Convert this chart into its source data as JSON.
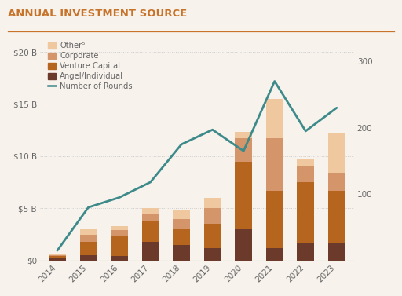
{
  "years": [
    2014,
    2015,
    2016,
    2017,
    2018,
    2019,
    2020,
    2021,
    2022,
    2023
  ],
  "angel_individual": [
    0.2,
    0.5,
    0.4,
    1.8,
    1.5,
    1.2,
    3.0,
    1.2,
    1.7,
    1.7
  ],
  "venture_capital": [
    0.2,
    1.3,
    1.9,
    2.0,
    1.5,
    2.3,
    6.5,
    5.5,
    5.8,
    5.0
  ],
  "corporate": [
    0.1,
    0.7,
    0.6,
    0.7,
    1.0,
    1.5,
    2.2,
    5.0,
    1.5,
    1.7
  ],
  "other": [
    0.05,
    0.5,
    0.4,
    0.5,
    0.8,
    1.0,
    0.6,
    3.8,
    0.7,
    3.8
  ],
  "num_rounds": [
    15,
    80,
    95,
    118,
    175,
    197,
    165,
    270,
    195,
    230
  ],
  "color_angel": "#6b3a2a",
  "color_vc": "#b5651d",
  "color_corporate": "#d4956a",
  "color_other": "#f0c8a0",
  "color_line": "#3d8a8a",
  "title": "ANNUAL INVESTMENT SOURCE",
  "title_color": "#c8732a",
  "separator_color": "#c8732a",
  "bg_color": "#f7f2ec",
  "tick_color": "#666666",
  "legend_labels": [
    "Other⁵",
    "Corporate",
    "Venture Capital",
    "Angel/Individual",
    "Number of Rounds"
  ],
  "ylim_left": [
    0,
    21
  ],
  "ylim_right": [
    0,
    330
  ],
  "yticks_left": [
    0,
    5,
    10,
    15,
    20
  ],
  "yticks_left_labels": [
    "$0",
    "$5 B",
    "$10 B",
    "$15 B",
    "$20 B"
  ],
  "yticks_right": [
    100,
    200,
    300
  ],
  "yticks_right_labels": [
    "100",
    "200",
    "300"
  ]
}
